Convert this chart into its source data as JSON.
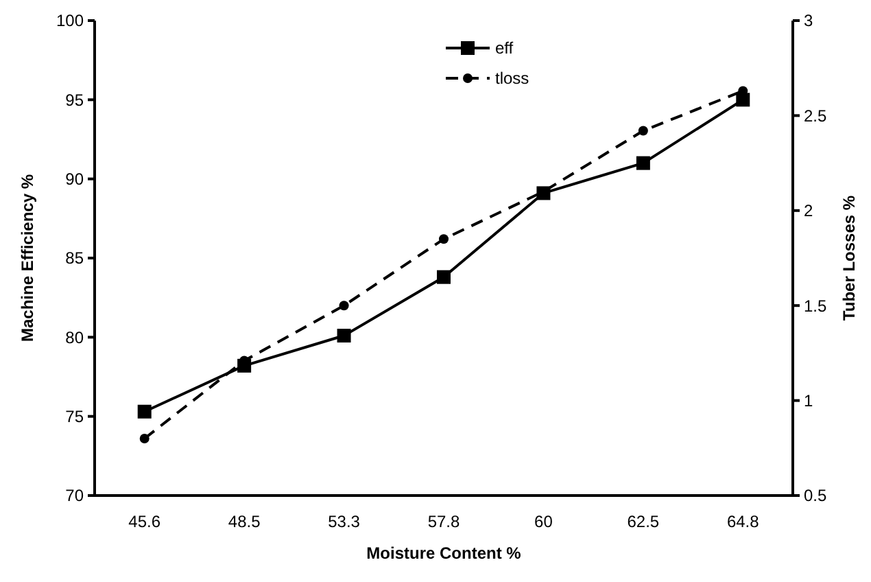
{
  "chart_data": {
    "type": "line",
    "xlabel": "Moisture Content %",
    "ylabel": "Machine Efficiency %",
    "y2label": "Tuber Losses %",
    "categories": [
      "45.6",
      "48.5",
      "53.3",
      "57.8",
      "60",
      "62.5",
      "64.8"
    ],
    "series": [
      {
        "name": "eff",
        "color": "#000000",
        "marker": "square",
        "line_style": "solid",
        "values": [
          75.3,
          78.2,
          80.1,
          83.8,
          89.1,
          91.0,
          95.0
        ]
      },
      {
        "name": "tloss",
        "color": "#000000",
        "marker": "circle",
        "line_style": "dashed",
        "axis": "y2",
        "values": [
          0.8,
          1.21,
          1.5,
          1.85,
          2.1,
          2.42,
          2.63
        ]
      }
    ],
    "ylim": [
      70,
      100
    ],
    "yticks": [
      70,
      75,
      80,
      85,
      90,
      95,
      100
    ],
    "y2lim": [
      0.5,
      3
    ],
    "y2ticks": [
      {
        "value": 0.5,
        "label": "0.5"
      },
      {
        "value": 1,
        "label": "1"
      },
      {
        "value": 1.5,
        "label": "1.5"
      },
      {
        "value": 2,
        "label": "2"
      },
      {
        "value": 2.5,
        "label": "2.5"
      },
      {
        "value": 3,
        "label": "3"
      }
    ],
    "grid": false,
    "legend": "top"
  }
}
